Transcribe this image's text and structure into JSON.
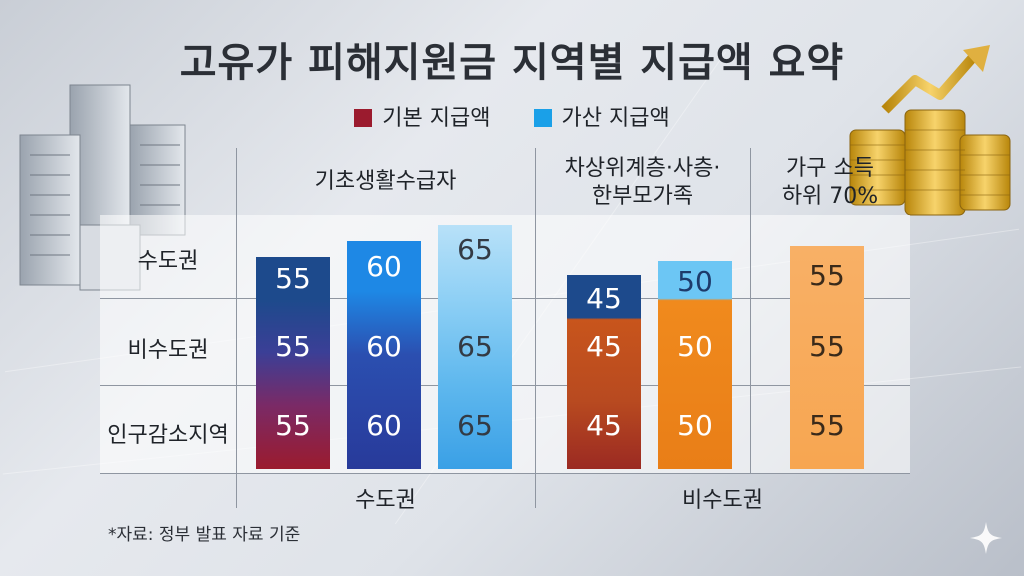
{
  "title": "고유가 피해지원금 지역별 지급액 요약",
  "legend": {
    "basic": {
      "label": "기본 지급액",
      "color": "#9b1b2e"
    },
    "extra": {
      "label": "가산 지급액",
      "color": "#1aa0e8"
    }
  },
  "column_headers": {
    "basic_recipients": "기초생활수급자",
    "near_poor": "차상위계층·사층·\n한부모가족",
    "income_70": "가구 소득\n하위 70%"
  },
  "group_labels": {
    "capital": "수도권",
    "non_capital": "비수도권"
  },
  "source": "*자료: 정부 발표 자료 기준",
  "icons": {
    "buildings": "city-buildings-icon",
    "coins": "gold-coins-arrow-icon",
    "sparkle": "sparkle-icon"
  },
  "chart_data": {
    "type": "bar",
    "title": "고유가 피해지원금 지역별 지급액 요약",
    "rows": [
      "수도권",
      "비수도권",
      "인구감소지역"
    ],
    "series": [
      {
        "group": "기초생활수급자",
        "values": [
          55,
          55,
          55
        ]
      },
      {
        "group": "기초생활수급자",
        "values": [
          60,
          60,
          60
        ]
      },
      {
        "group": "기초생활수급자",
        "values": [
          65,
          65,
          65
        ]
      },
      {
        "group": "차상위계층·사층·한부모가족",
        "values": [
          45,
          45,
          45
        ]
      },
      {
        "group": "차상위계층·사층·한부모가족",
        "values": [
          50,
          50,
          50
        ]
      },
      {
        "group": "가구 소득 하위 70%",
        "values": [
          55,
          55,
          55
        ]
      }
    ],
    "grid": true,
    "legend_position": "top"
  }
}
